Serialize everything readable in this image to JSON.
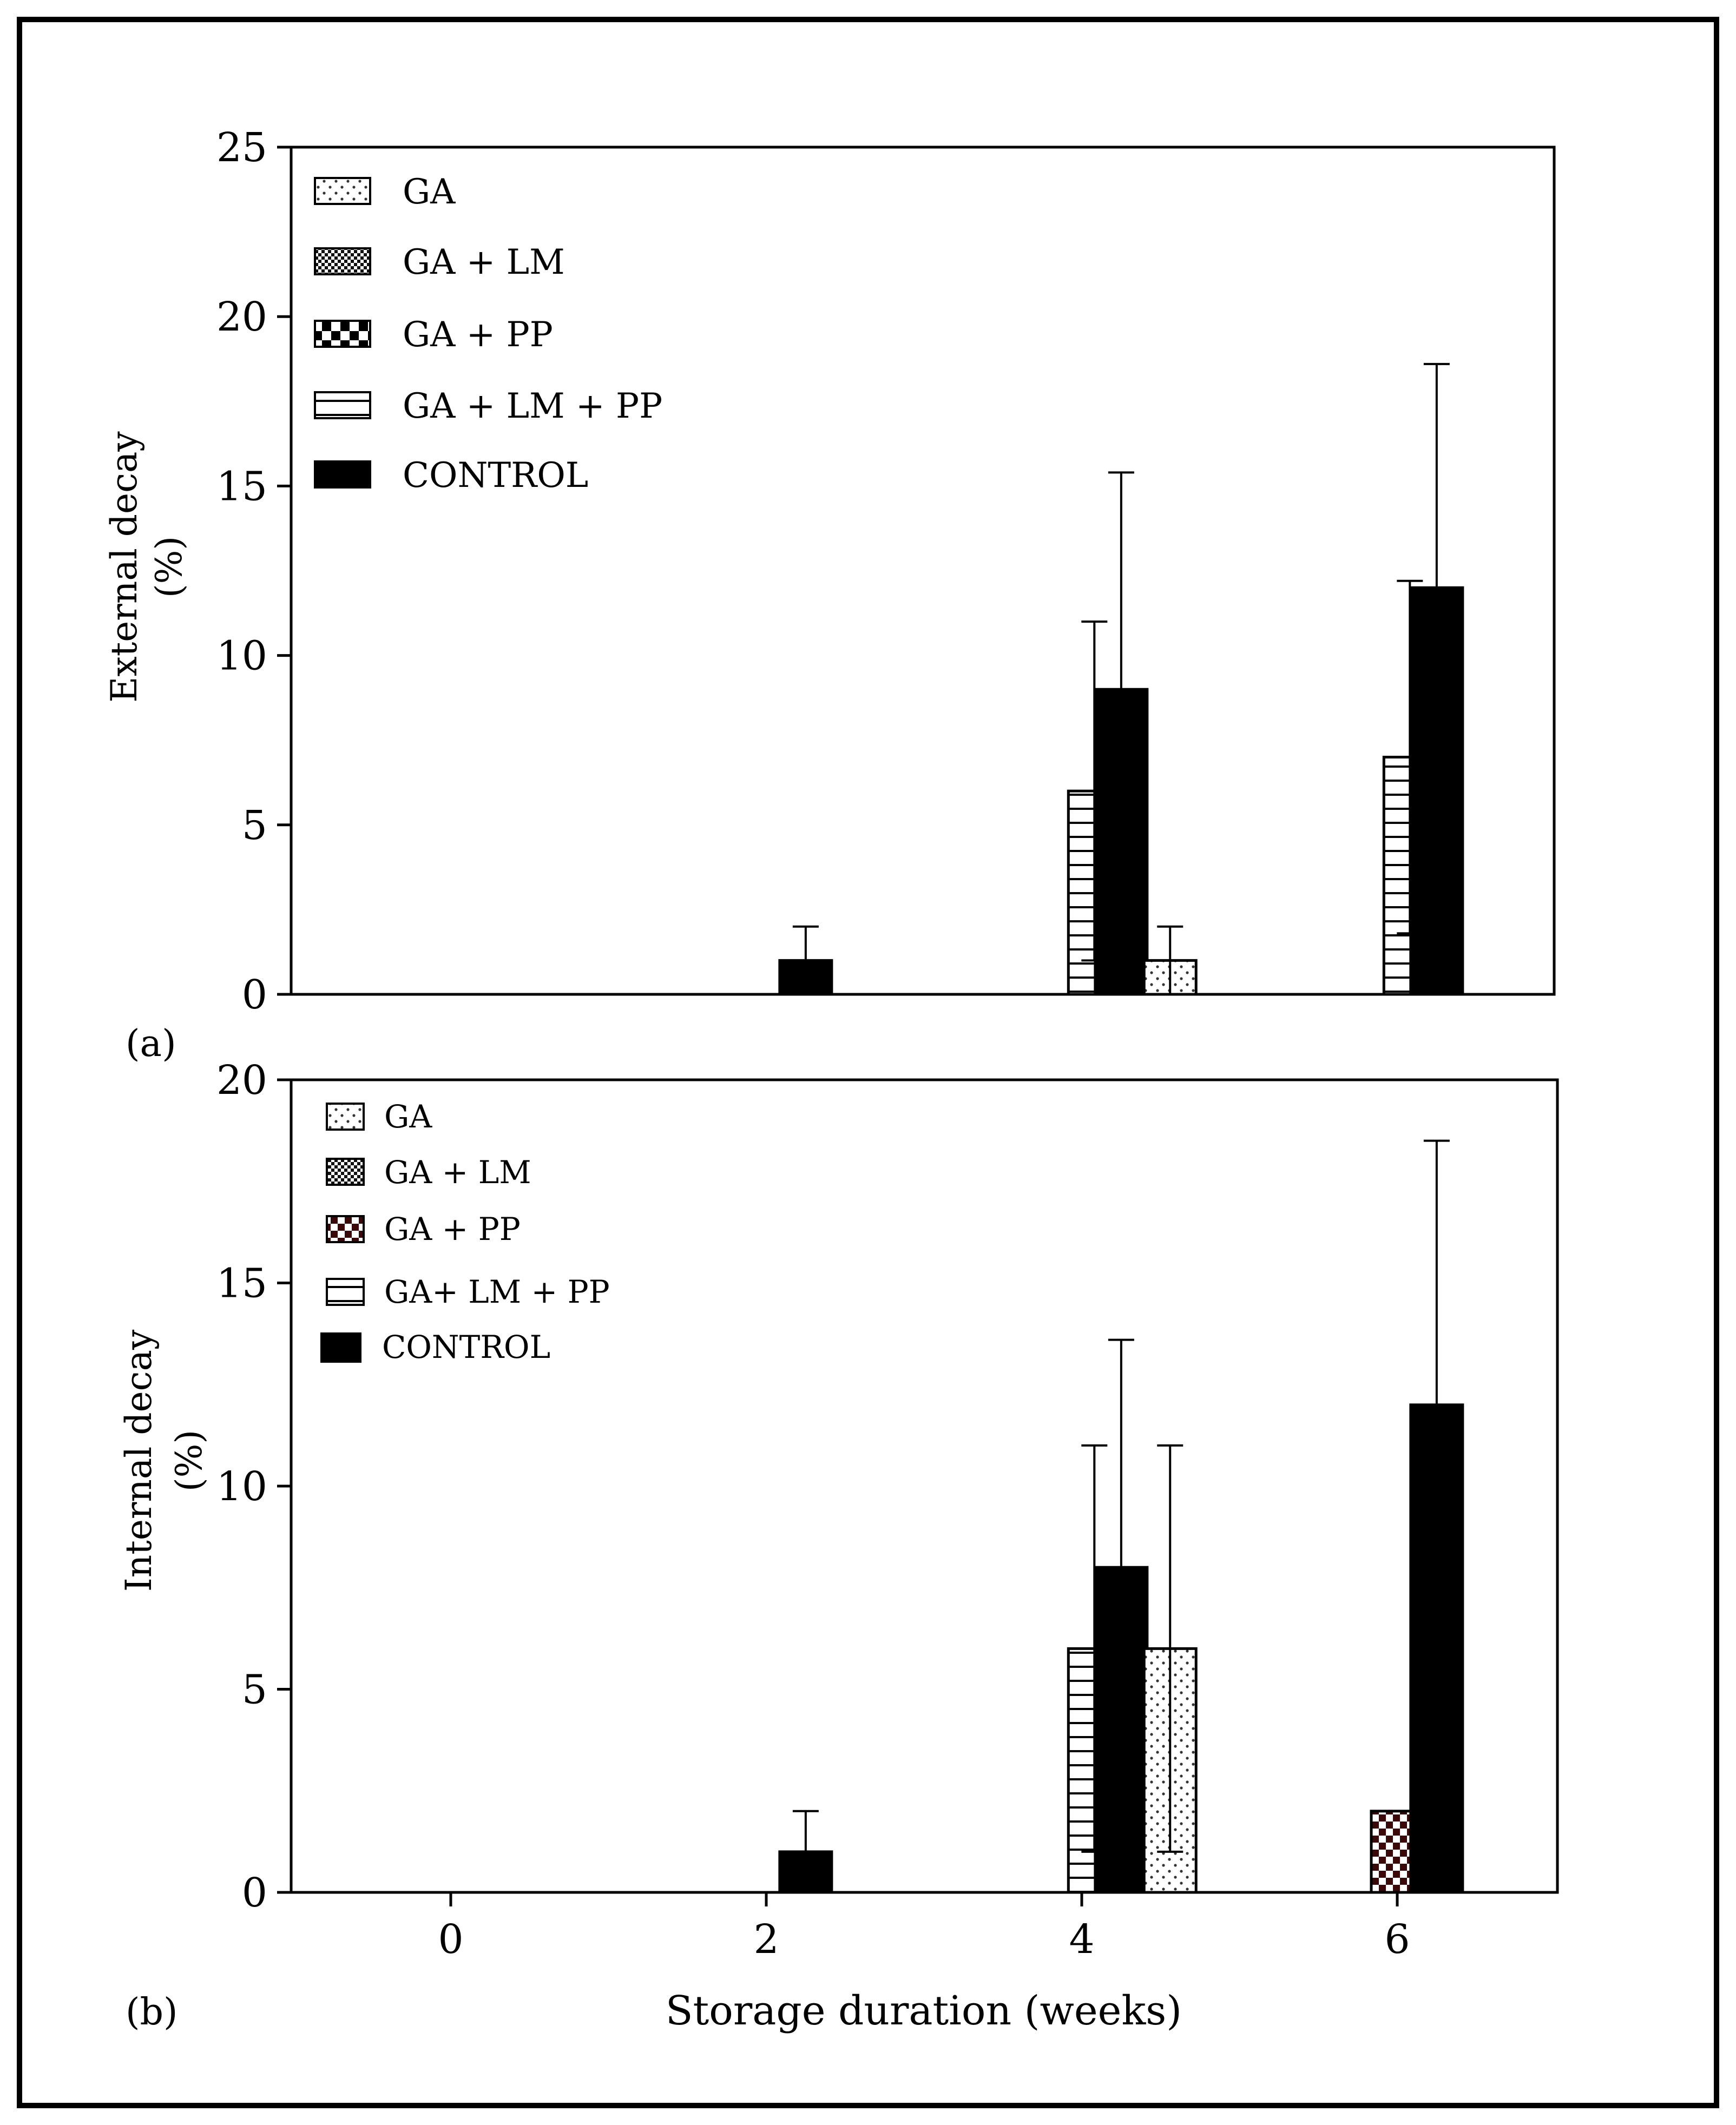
{
  "chart_data": [
    {
      "type": "bar",
      "panel_label": "(a)",
      "ylabel": [
        "External decay",
        "(%)"
      ],
      "xlabel": "",
      "ylim": [
        0,
        25
      ],
      "yticks": [
        "0",
        "5",
        "10",
        "15",
        "20",
        "25"
      ],
      "legend_position": "top-left",
      "legend": [
        "GA",
        "GA + LM",
        "GA + PP",
        "GA + LM + PP",
        "CONTROL"
      ],
      "bars": [
        {
          "week": 2,
          "series": "CONTROL",
          "value": 1,
          "err": 1
        },
        {
          "week": 4,
          "series": "GA + LM + PP",
          "value": 6,
          "err": 5
        },
        {
          "week": 4,
          "series": "CONTROL",
          "value": 9,
          "err": 6.4
        },
        {
          "week": 5,
          "series": "GA",
          "value": 1,
          "err": 1
        },
        {
          "week": 6,
          "series": "GA + LM + PP",
          "value": 7,
          "err": 5.2
        },
        {
          "week": 6,
          "series": "CONTROL",
          "value": 12,
          "err": 6.6
        }
      ]
    },
    {
      "type": "bar",
      "panel_label": "(b)",
      "ylabel": [
        "Internal decay",
        "(%)"
      ],
      "xlabel": "Storage duration (weeks)",
      "xticks": [
        "0",
        "2",
        "4",
        "6"
      ],
      "ylim": [
        0,
        20
      ],
      "yticks": [
        "0",
        "5",
        "10",
        "15",
        "20"
      ],
      "legend_position": "top-left",
      "legend": [
        "GA",
        "GA + LM",
        "GA + PP",
        "GA+ LM + PP",
        "CONTROL"
      ],
      "bars": [
        {
          "week": 2,
          "series": "CONTROL",
          "value": 1,
          "err": 1
        },
        {
          "week": 4,
          "series": "GA + LM + PP",
          "value": 6,
          "err": 5
        },
        {
          "week": 4,
          "series": "CONTROL",
          "value": 8,
          "err": 5.6
        },
        {
          "week": 5,
          "series": "GA",
          "value": 6,
          "err": 5
        },
        {
          "week": 6,
          "series": "GA + PP",
          "value": 2,
          "err": 0
        },
        {
          "week": 6,
          "series": "CONTROL",
          "value": 12,
          "err": 6.5
        }
      ]
    }
  ]
}
